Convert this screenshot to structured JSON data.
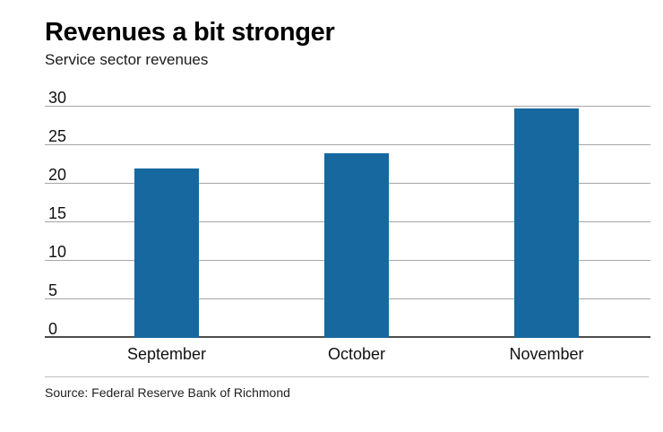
{
  "header": {
    "title": "Revenues a bit stronger",
    "subtitle": "Service sector revenues"
  },
  "source": "Source: Federal Reserve Bank of Richmond",
  "colors": {
    "bar": "#17689f",
    "grid": "#a6a6a6",
    "zero_axis": "#4d4d4d"
  },
  "chart_data": {
    "type": "bar",
    "title": "Revenues a bit stronger",
    "subtitle": "Service sector revenues",
    "categories": [
      "September",
      "October",
      "November"
    ],
    "values": [
      22,
      24,
      29.8
    ],
    "xlabel": "",
    "ylabel": "",
    "ylim": [
      0,
      30
    ],
    "yticks": [
      0,
      5,
      10,
      15,
      20,
      25,
      30
    ],
    "grid": true,
    "legend": false,
    "source": "Source: Federal Reserve Bank of Richmond"
  }
}
